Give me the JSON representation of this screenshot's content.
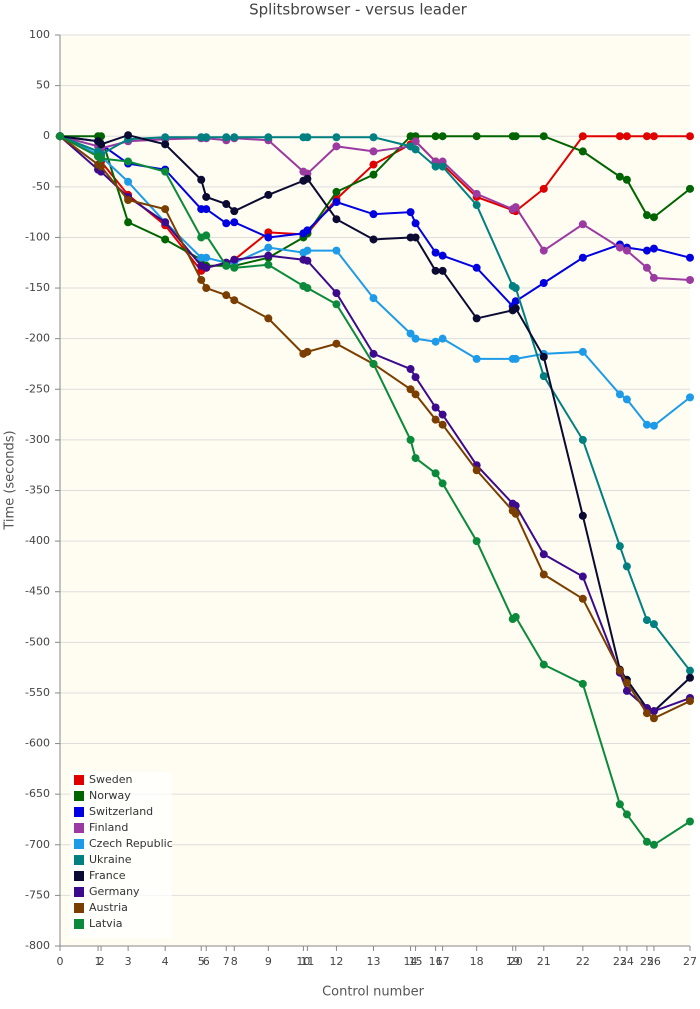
{
  "chart_data": {
    "type": "line",
    "title": "Splitsbrowser - versus leader",
    "x_label": "Control number",
    "y_label": "Time (seconds)",
    "x": [
      0,
      38,
      41,
      68,
      105,
      141,
      146,
      166,
      174,
      208,
      243,
      247,
      276,
      313,
      350,
      355,
      375,
      382,
      416,
      452,
      455,
      483,
      522,
      559,
      566,
      586,
      593,
      629
    ],
    "xlim": [
      0,
      629
    ],
    "xticks": [
      {
        "value": 0,
        "label": "0"
      },
      {
        "value": 38,
        "label": "1"
      },
      {
        "value": 41,
        "label": "2"
      },
      {
        "value": 68,
        "label": "3"
      },
      {
        "value": 105,
        "label": "4"
      },
      {
        "value": 141,
        "label": "5"
      },
      {
        "value": 146,
        "label": "6"
      },
      {
        "value": 166,
        "label": "7"
      },
      {
        "value": 174,
        "label": "8"
      },
      {
        "value": 208,
        "label": "9"
      },
      {
        "value": 243,
        "label": "10"
      },
      {
        "value": 247,
        "label": "11"
      },
      {
        "value": 276,
        "label": "12"
      },
      {
        "value": 313,
        "label": "13"
      },
      {
        "value": 350,
        "label": "14"
      },
      {
        "value": 355,
        "label": "15"
      },
      {
        "value": 375,
        "label": "16"
      },
      {
        "value": 382,
        "label": "17"
      },
      {
        "value": 416,
        "label": "18"
      },
      {
        "value": 452,
        "label": "19"
      },
      {
        "value": 455,
        "label": "20"
      },
      {
        "value": 483,
        "label": "21"
      },
      {
        "value": 522,
        "label": "22"
      },
      {
        "value": 559,
        "label": "23"
      },
      {
        "value": 566,
        "label": "24"
      },
      {
        "value": 586,
        "label": "25"
      },
      {
        "value": 593,
        "label": "26"
      },
      {
        "value": 629,
        "label": "27"
      }
    ],
    "ylim": [
      -800,
      100
    ],
    "yticks": [
      100,
      50,
      0,
      -50,
      -100,
      -150,
      -200,
      -250,
      -300,
      -350,
      -400,
      -450,
      -500,
      -550,
      -600,
      -650,
      -700,
      -750,
      -800
    ],
    "grid": true,
    "legend": "bottom-left",
    "series": [
      {
        "name": "Sweden",
        "color": "#e00000",
        "values": [
          0,
          -20,
          -25,
          -58,
          -88,
          -133,
          -130,
          -125,
          -122,
          -95,
          -97,
          -96,
          -62,
          -28,
          -8,
          -5,
          -25,
          -28,
          -60,
          -73,
          -74,
          -52,
          0,
          0,
          0,
          0,
          0,
          0
        ]
      },
      {
        "name": "Norway",
        "color": "#006400",
        "values": [
          0,
          0,
          0,
          -85,
          -102,
          -122,
          -128,
          -128,
          -128,
          -120,
          -100,
          -96,
          -55,
          -38,
          0,
          0,
          0,
          0,
          0,
          0,
          0,
          0,
          -15,
          -40,
          -43,
          -78,
          -80,
          -52
        ]
      },
      {
        "name": "Switzerland",
        "color": "#0000e0",
        "values": [
          0,
          -5,
          -8,
          -27,
          -33,
          -72,
          -72,
          -86,
          -85,
          -100,
          -96,
          -93,
          -65,
          -77,
          -75,
          -86,
          -115,
          -118,
          -130,
          -168,
          -163,
          -145,
          -120,
          -107,
          -110,
          -113,
          -111,
          -120
        ]
      },
      {
        "name": "Finland",
        "color": "#9b3aa0",
        "values": [
          0,
          -10,
          -12,
          -5,
          -3,
          -2,
          -2,
          -4,
          -2,
          -4,
          -35,
          -37,
          -10,
          -15,
          -10,
          -5,
          -25,
          -25,
          -57,
          -72,
          -70,
          -113,
          -87,
          -110,
          -113,
          -130,
          -140,
          -142
        ]
      },
      {
        "name": "Czech Republic",
        "color": "#1e9be8",
        "values": [
          0,
          -18,
          -20,
          -45,
          -85,
          -120,
          -120,
          -125,
          -125,
          -110,
          -115,
          -113,
          -113,
          -160,
          -195,
          -200,
          -203,
          -200,
          -220,
          -220,
          -220,
          -215,
          -213,
          -255,
          -260,
          -285,
          -286,
          -258
        ]
      },
      {
        "name": "Ukraine",
        "color": "#008080",
        "values": [
          0,
          -15,
          -18,
          -3,
          -1,
          -1,
          -1,
          -1,
          -1,
          -1,
          -1,
          -1,
          -1,
          -1,
          -10,
          -13,
          -30,
          -30,
          -68,
          -148,
          -150,
          -237,
          -300,
          -405,
          -425,
          -478,
          -482,
          -528
        ]
      },
      {
        "name": "France",
        "color": "#0a0a32",
        "values": [
          0,
          -5,
          -8,
          1,
          -8,
          -43,
          -60,
          -67,
          -74,
          -58,
          -44,
          -42,
          -82,
          -102,
          -100,
          -100,
          -133,
          -133,
          -180,
          -172,
          -170,
          -218,
          -375,
          -527,
          -537,
          -565,
          -568,
          -535
        ]
      },
      {
        "name": "Germany",
        "color": "#3c0a8c",
        "values": [
          0,
          -33,
          -35,
          -60,
          -85,
          -128,
          -130,
          -125,
          -122,
          -118,
          -122,
          -123,
          -155,
          -215,
          -230,
          -238,
          -268,
          -275,
          -325,
          -363,
          -365,
          -413,
          -435,
          -530,
          -548,
          -565,
          -568,
          -555
        ]
      },
      {
        "name": "Austria",
        "color": "#7a3f00",
        "values": [
          0,
          -28,
          -30,
          -63,
          -72,
          -142,
          -150,
          -157,
          -162,
          -180,
          -215,
          -213,
          -205,
          -225,
          -250,
          -255,
          -280,
          -285,
          -330,
          -370,
          -373,
          -433,
          -457,
          -528,
          -540,
          -570,
          -575,
          -558
        ]
      },
      {
        "name": "Latvia",
        "color": "#0a8a3a",
        "values": [
          0,
          -20,
          -22,
          -25,
          -35,
          -100,
          -98,
          -128,
          -130,
          -127,
          -148,
          -150,
          -166,
          -225,
          -300,
          -318,
          -333,
          -343,
          -400,
          -477,
          -475,
          -522,
          -541,
          -660,
          -670,
          -697,
          -700,
          -677
        ]
      }
    ]
  }
}
